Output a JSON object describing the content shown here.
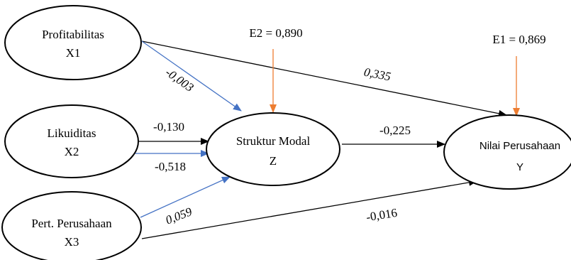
{
  "colors": {
    "stroke": "#000000",
    "blue_arrow": "#4472C4",
    "orange_arrow": "#ED7D31",
    "background": "#FFFFFF"
  },
  "nodes": {
    "x1": {
      "name": "Profitabilitas",
      "code": "X1"
    },
    "x2": {
      "name": "Likuiditas",
      "code": "X2"
    },
    "x3": {
      "name": "Pert. Perusahaan",
      "code": "X3"
    },
    "z": {
      "name": "Struktur Modal",
      "code": "Z"
    },
    "y": {
      "name": "Nilai Perusahaan",
      "code": "Y"
    }
  },
  "errors": {
    "e2": "E2 = 0,890",
    "e1": "E1 = 0,869"
  },
  "paths": {
    "x1_to_z": "-0,003",
    "x1_to_y": "0,335",
    "x2_to_z_upper": "-0,130",
    "x2_to_z_lower": "-0,518",
    "z_to_y": "-0,225",
    "x3_to_z": "0,059",
    "x3_to_y": "-0,016"
  }
}
